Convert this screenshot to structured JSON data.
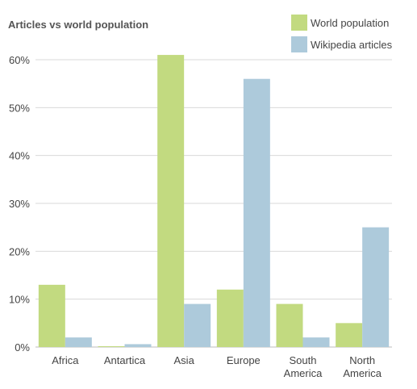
{
  "chart_data": {
    "type": "bar",
    "title": "Articles vs world population",
    "categories": [
      [
        "Africa"
      ],
      [
        "Antartica"
      ],
      [
        "Asia"
      ],
      [
        "Europe"
      ],
      [
        "South",
        "America"
      ],
      [
        "North",
        "America"
      ]
    ],
    "series": [
      {
        "name": "World population",
        "color": "#c2da80",
        "values": [
          13,
          0.1,
          61,
          12,
          9,
          5
        ]
      },
      {
        "name": "Wikipedia articles",
        "color": "#adcadb",
        "values": [
          2,
          0.6,
          9,
          56,
          2,
          25
        ]
      }
    ],
    "ylim": [
      0,
      60
    ],
    "yticks": [
      0,
      10,
      20,
      30,
      40,
      50,
      60
    ],
    "ytick_labels": [
      "0%",
      "10%",
      "20%",
      "30%",
      "40%",
      "50%",
      "60%"
    ],
    "grid": true,
    "legend": "top-right"
  }
}
